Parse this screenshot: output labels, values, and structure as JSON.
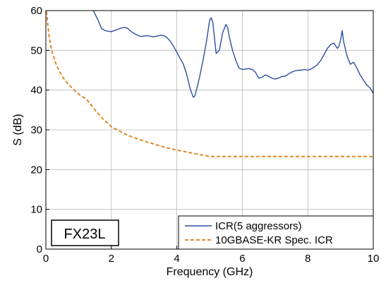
{
  "chart_data": {
    "type": "line",
    "xlabel": "Frequency (GHz)",
    "ylabel": "S (dB)",
    "xlim": [
      0,
      10
    ],
    "ylim": [
      0,
      60
    ],
    "xticks": [
      0,
      2,
      4,
      6,
      8,
      10
    ],
    "yticks": [
      0,
      10,
      20,
      30,
      40,
      50,
      60
    ],
    "grid": true,
    "legend_position": "bottom-right",
    "annotation": "FX23L",
    "series": [
      {
        "name": "ICR(5 aggressors)",
        "color": "#2b4fa0",
        "style": "solid",
        "x": [
          1.45,
          1.6,
          1.7,
          1.8,
          1.9,
          2.0,
          2.1,
          2.2,
          2.3,
          2.4,
          2.5,
          2.6,
          2.7,
          2.8,
          2.9,
          3.0,
          3.1,
          3.2,
          3.3,
          3.4,
          3.5,
          3.6,
          3.7,
          3.8,
          3.9,
          4.0,
          4.1,
          4.2,
          4.3,
          4.4,
          4.5,
          4.55,
          4.6,
          4.7,
          4.8,
          4.9,
          5.0,
          5.05,
          5.1,
          5.2,
          5.3,
          5.4,
          5.5,
          5.55,
          5.6,
          5.7,
          5.8,
          5.9,
          6.0,
          6.1,
          6.2,
          6.3,
          6.4,
          6.5,
          6.6,
          6.7,
          6.8,
          6.9,
          7.0,
          7.1,
          7.2,
          7.3,
          7.4,
          7.5,
          7.6,
          7.7,
          7.8,
          7.9,
          8.0,
          8.1,
          8.2,
          8.3,
          8.4,
          8.5,
          8.6,
          8.7,
          8.8,
          8.9,
          8.95,
          9.0,
          9.05,
          9.1,
          9.2,
          9.3,
          9.4,
          9.5,
          9.6,
          9.7,
          9.8,
          9.9,
          10.0
        ],
        "values": [
          60.0,
          57.5,
          55.5,
          55.0,
          54.8,
          54.7,
          55.0,
          55.3,
          55.6,
          55.8,
          55.5,
          54.8,
          54.2,
          53.8,
          53.5,
          53.6,
          53.7,
          53.5,
          53.4,
          53.6,
          53.8,
          53.7,
          53.2,
          52.3,
          51.0,
          49.5,
          48.0,
          46.5,
          44.0,
          40.5,
          38.2,
          38.5,
          40.0,
          43.5,
          47.5,
          52.0,
          57.5,
          58.2,
          57.0,
          49.2,
          50.0,
          54.5,
          56.5,
          55.8,
          53.5,
          50.0,
          47.5,
          45.5,
          45.2,
          45.3,
          45.4,
          45.2,
          44.5,
          43.0,
          43.2,
          43.8,
          43.5,
          43.0,
          42.8,
          43.0,
          43.4,
          43.5,
          44.0,
          44.5,
          44.8,
          45.0,
          45.0,
          45.2,
          45.0,
          45.3,
          45.8,
          46.5,
          47.5,
          49.0,
          50.5,
          51.5,
          51.8,
          50.5,
          51.0,
          52.5,
          55.0,
          52.0,
          48.5,
          46.5,
          47.0,
          45.5,
          43.8,
          42.5,
          41.3,
          40.5,
          39.2
        ]
      },
      {
        "name": "10GBASE-KR Spec. ICR",
        "color": "#e0882a",
        "style": "dashed",
        "x": [
          0.02,
          0.05,
          0.1,
          0.15,
          0.2,
          0.3,
          0.4,
          0.5,
          0.6,
          0.8,
          1.0,
          1.25,
          1.5,
          1.75,
          2.0,
          2.5,
          3.0,
          3.5,
          4.0,
          4.5,
          5.0,
          6.0,
          7.0,
          8.0,
          9.0,
          10.0
        ],
        "values": [
          59.8,
          57.1,
          53.5,
          51.1,
          49.3,
          46.8,
          44.9,
          43.5,
          42.3,
          40.5,
          39.0,
          37.6,
          35.0,
          32.7,
          30.8,
          28.6,
          27.2,
          25.9,
          24.9,
          24.1,
          23.3,
          23.3,
          23.3,
          23.3,
          23.3,
          23.3
        ]
      }
    ]
  }
}
